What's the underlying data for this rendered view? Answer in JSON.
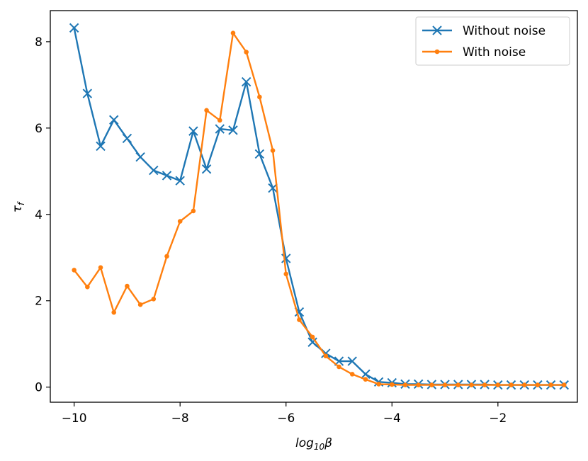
{
  "chart_data": {
    "type": "line",
    "xlabel_base": "log",
    "xlabel_sub": "10",
    "xlabel_var": "β",
    "ylabel_var": "τ",
    "ylabel_sub": "f",
    "xlim": [
      -10.45,
      -0.5
    ],
    "ylim": [
      -0.35,
      8.72
    ],
    "xticks": [
      -10,
      -8,
      -6,
      -4,
      -2
    ],
    "xtick_labels": [
      "−10",
      "−8",
      "−6",
      "−4",
      "−2"
    ],
    "yticks": [
      0,
      2,
      4,
      6,
      8
    ],
    "ytick_labels": [
      "0",
      "2",
      "4",
      "6",
      "8"
    ],
    "grid": false,
    "legend_position": "top-right",
    "x": [
      -10,
      -9.75,
      -9.5,
      -9.25,
      -9,
      -8.75,
      -8.5,
      -8.25,
      -8,
      -7.75,
      -7.5,
      -7.25,
      -7,
      -6.75,
      -6.5,
      -6.25,
      -6,
      -5.75,
      -5.5,
      -5.25,
      -5,
      -4.75,
      -4.5,
      -4.25,
      -4,
      -3.75,
      -3.5,
      -3.25,
      -3,
      -2.75,
      -2.5,
      -2.25,
      -2,
      -1.75,
      -1.5,
      -1.25,
      -1,
      -0.75
    ],
    "series": [
      {
        "name": "Without noise",
        "color": "#1f77b4",
        "marker": "x",
        "values": [
          8.32,
          6.8,
          5.58,
          6.19,
          5.76,
          5.33,
          5.02,
          4.9,
          4.78,
          5.93,
          5.05,
          5.98,
          5.95,
          7.07,
          5.4,
          4.61,
          2.98,
          1.74,
          1.04,
          0.78,
          0.6,
          0.6,
          0.3,
          0.12,
          0.1,
          0.07,
          0.07,
          0.06,
          0.06,
          0.06,
          0.06,
          0.06,
          0.05,
          0.05,
          0.05,
          0.05,
          0.05,
          0.05
        ]
      },
      {
        "name": "With noise",
        "color": "#ff7f0e",
        "marker": "o",
        "values": [
          2.71,
          2.32,
          2.77,
          1.73,
          2.34,
          1.91,
          2.04,
          3.03,
          3.84,
          4.08,
          6.41,
          6.18,
          8.2,
          7.76,
          6.72,
          5.48,
          2.62,
          1.56,
          1.16,
          0.72,
          0.47,
          0.3,
          0.18,
          0.07,
          0.06,
          0.05,
          0.05,
          0.05,
          0.05,
          0.05,
          0.05,
          0.05,
          0.05,
          0.05,
          0.05,
          0.05,
          0.05,
          0.05
        ]
      }
    ]
  }
}
